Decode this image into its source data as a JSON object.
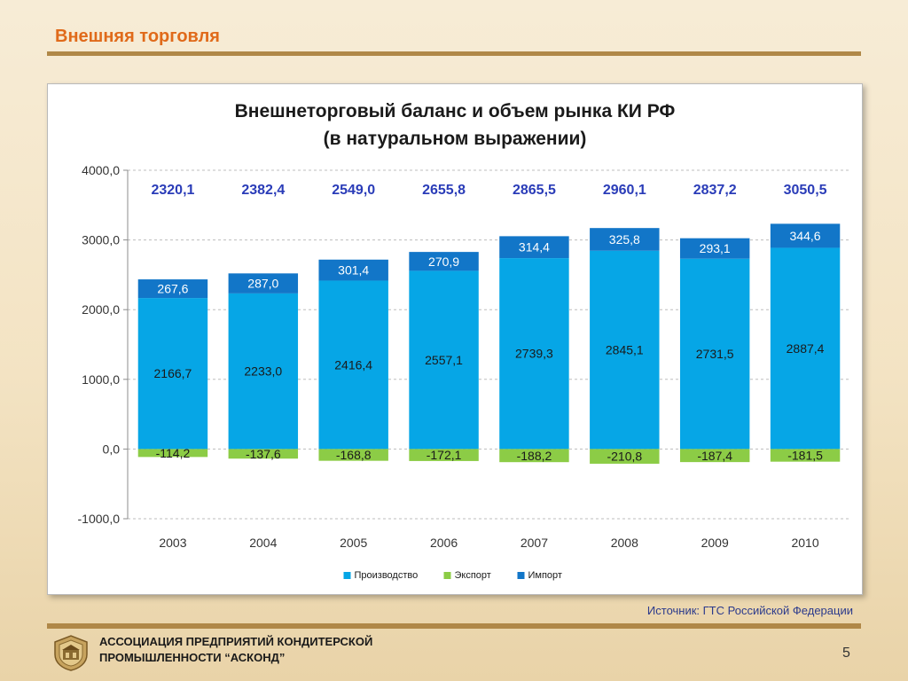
{
  "slide": {
    "title": "Внешняя торговля",
    "source": "Источник: ГТС Российской Федерации",
    "org_line1": "АССОЦИАЦИЯ ПРЕДПРИЯТИЙ  КОНДИТЕРСКОЙ",
    "org_line2": "ПРОМЫШЛЕННОСТИ “АСКОНД”",
    "page_number": "5"
  },
  "colors": {
    "production": "#06a6e6",
    "export": "#8ccc46",
    "import": "#1276c8",
    "total_label": "#2a3cb8",
    "title_accent": "#e06a1a",
    "rule": "#b08848"
  },
  "chart_data": {
    "type": "bar",
    "stacked": true,
    "title_line1": "Внешнеторговый баланс и объем рынка КИ РФ",
    "title_line2": "(в натуральном выражении)",
    "categories": [
      "2003",
      "2004",
      "2005",
      "2006",
      "2007",
      "2008",
      "2009",
      "2010"
    ],
    "series": [
      {
        "name": "Производство",
        "key": "production",
        "values": [
          2166.7,
          2233.0,
          2416.4,
          2557.1,
          2739.3,
          2845.1,
          2731.5,
          2887.4
        ],
        "labels": [
          "2166,7",
          "2233,0",
          "2416,4",
          "2557,1",
          "2739,3",
          "2845,1",
          "2731,5",
          "2887,4"
        ]
      },
      {
        "name": "Экспорт",
        "key": "export",
        "values": [
          -114.2,
          -137.6,
          -168.8,
          -172.1,
          -188.2,
          -210.8,
          -187.4,
          -181.5
        ],
        "labels": [
          "-114,2",
          "-137,6",
          "-168,8",
          "-172,1",
          "-188,2",
          "-210,8",
          "-187,4",
          "-181,5"
        ]
      },
      {
        "name": "Импорт",
        "key": "import",
        "values": [
          267.6,
          287.0,
          301.4,
          270.9,
          314.4,
          325.8,
          293.1,
          344.6
        ],
        "labels": [
          "267,6",
          "287,0",
          "301,4",
          "270,9",
          "314,4",
          "325,8",
          "293,1",
          "344,6"
        ]
      }
    ],
    "totals": [
      2320.1,
      2382.4,
      2549.0,
      2655.8,
      2865.5,
      2960.1,
      2837.2,
      3050.5
    ],
    "total_labels": [
      "2320,1",
      "2382,4",
      "2549,0",
      "2655,8",
      "2865,5",
      "2960,1",
      "2837,2",
      "3050,5"
    ],
    "ylim": [
      -1000,
      4000
    ],
    "yticks": [
      4000,
      3000,
      2000,
      1000,
      0,
      -1000
    ],
    "ytick_labels": [
      "4000,0",
      "3000,0",
      "2000,0",
      "1000,0",
      "0,0",
      "-1000,0"
    ],
    "grid": true,
    "legend_position": "bottom"
  }
}
